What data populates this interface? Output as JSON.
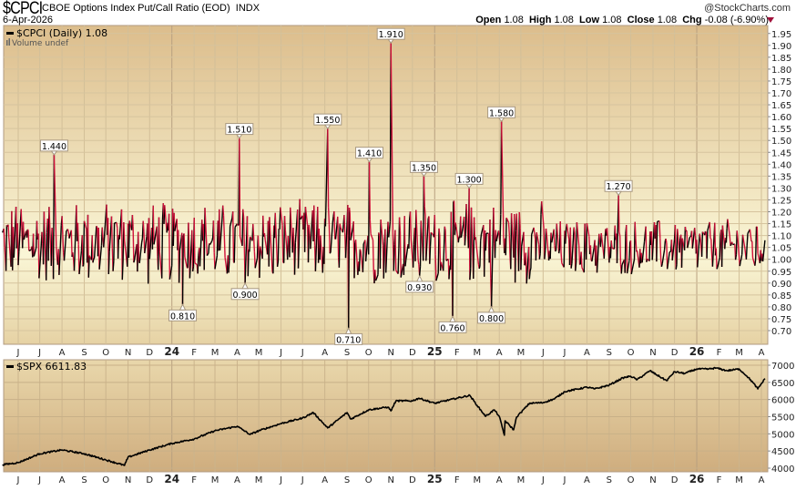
{
  "header": {
    "symbol": "$CPCI",
    "name": "CBOE Options Index Put/Call Ratio (EOD)",
    "exchange": "INDX",
    "date": "6-Apr-2026",
    "brand": "@StockCharts.com",
    "open_label": "Open",
    "open": "1.08",
    "high_label": "High",
    "high": "1.08",
    "low_label": "Low",
    "low": "1.08",
    "close_label": "Close",
    "close": "1.08",
    "chg_label": "Chg",
    "chg": "-0.08 (-6.90%)",
    "chg_direction": "down"
  },
  "colors": {
    "down": "#d0103a",
    "up": "#000000",
    "panel_top": "#dcbd8c",
    "panel_mid": "#faf6d6",
    "border": "#b09a80"
  },
  "chart_data": [
    {
      "type": "line",
      "legend": "$CPCI (Daily) 1.08",
      "volume_note": "Volume undef",
      "ylim": [
        0.65,
        2.0
      ],
      "yticks": [
        "0.70",
        "0.75",
        "0.80",
        "0.85",
        "0.90",
        "0.95",
        "1.00",
        "1.05",
        "1.10",
        "1.15",
        "1.20",
        "1.25",
        "1.30",
        "1.35",
        "1.40",
        "1.45",
        "1.50",
        "1.55",
        "1.60",
        "1.65",
        "1.70",
        "1.75",
        "1.80",
        "1.85",
        "1.90",
        "1.95"
      ],
      "grid": true,
      "last_value": 1.08,
      "annotations": [
        {
          "date": "2023-07-21",
          "value": 1.44,
          "label": "1.440",
          "pos": "above"
        },
        {
          "date": "2024-01-16",
          "value": 0.81,
          "label": "0.810",
          "pos": "below"
        },
        {
          "date": "2024-04-04",
          "value": 1.51,
          "label": "1.510",
          "pos": "above"
        },
        {
          "date": "2024-04-12",
          "value": 0.9,
          "label": "0.900",
          "pos": "below"
        },
        {
          "date": "2024-08-05",
          "value": 1.55,
          "label": "1.550",
          "pos": "above"
        },
        {
          "date": "2024-09-03",
          "value": 0.71,
          "label": "0.710",
          "pos": "below"
        },
        {
          "date": "2024-10-02",
          "value": 1.41,
          "label": "1.410",
          "pos": "above"
        },
        {
          "date": "2024-11-01",
          "value": 1.91,
          "label": "1.910",
          "pos": "above"
        },
        {
          "date": "2024-12-11",
          "value": 0.93,
          "label": "0.930",
          "pos": "below"
        },
        {
          "date": "2024-12-17",
          "value": 1.35,
          "label": "1.350",
          "pos": "above"
        },
        {
          "date": "2025-01-26",
          "value": 0.76,
          "label": "0.760",
          "pos": "below"
        },
        {
          "date": "2025-02-18",
          "value": 1.3,
          "label": "1.300",
          "pos": "above"
        },
        {
          "date": "2025-03-21",
          "value": 0.8,
          "label": "0.800",
          "pos": "below"
        },
        {
          "date": "2025-04-04",
          "value": 1.58,
          "label": "1.580",
          "pos": "above"
        },
        {
          "date": "2025-09-14",
          "value": 1.27,
          "label": "1.270",
          "pos": "above"
        }
      ]
    },
    {
      "type": "line",
      "legend": "$SPX 6611.83",
      "ylim": [
        3900,
        7150
      ],
      "yticks": [
        "4000",
        "4500",
        "5000",
        "5500",
        "6000",
        "6500",
        "7000"
      ],
      "grid": true,
      "points": [
        [
          "2023-05-10",
          4100
        ],
        [
          "2023-06-01",
          4160
        ],
        [
          "2023-07-01",
          4420
        ],
        [
          "2023-08-01",
          4530
        ],
        [
          "2023-09-01",
          4420
        ],
        [
          "2023-10-01",
          4240
        ],
        [
          "2023-10-27",
          4080
        ],
        [
          "2023-11-01",
          4320
        ],
        [
          "2023-12-01",
          4530
        ],
        [
          "2024-01-01",
          4720
        ],
        [
          "2024-02-01",
          4850
        ],
        [
          "2024-03-01",
          5090
        ],
        [
          "2024-04-01",
          5220
        ],
        [
          "2024-04-19",
          4980
        ],
        [
          "2024-05-01",
          5090
        ],
        [
          "2024-06-01",
          5300
        ],
        [
          "2024-07-01",
          5460
        ],
        [
          "2024-07-16",
          5620
        ],
        [
          "2024-08-05",
          5170
        ],
        [
          "2024-09-01",
          5620
        ],
        [
          "2024-09-06",
          5430
        ],
        [
          "2024-10-01",
          5700
        ],
        [
          "2024-10-28",
          5780
        ],
        [
          "2024-11-01",
          5670
        ],
        [
          "2024-11-08",
          5960
        ],
        [
          "2024-12-01",
          5960
        ],
        [
          "2024-12-10",
          6040
        ],
        [
          "2025-01-01",
          5890
        ],
        [
          "2025-02-01",
          6040
        ],
        [
          "2025-02-19",
          6120
        ],
        [
          "2025-03-01",
          5830
        ],
        [
          "2025-03-13",
          5510
        ],
        [
          "2025-03-25",
          5700
        ],
        [
          "2025-04-01",
          5510
        ],
        [
          "2025-04-08",
          4960
        ],
        [
          "2025-04-09",
          5380
        ],
        [
          "2025-04-21",
          5120
        ],
        [
          "2025-04-25",
          5490
        ],
        [
          "2025-05-01",
          5620
        ],
        [
          "2025-05-13",
          5890
        ],
        [
          "2025-06-01",
          5910
        ],
        [
          "2025-06-17",
          6020
        ],
        [
          "2025-07-01",
          6230
        ],
        [
          "2025-08-01",
          6360
        ],
        [
          "2025-08-12",
          6310
        ],
        [
          "2025-09-01",
          6420
        ],
        [
          "2025-09-20",
          6630
        ],
        [
          "2025-10-01",
          6680
        ],
        [
          "2025-10-10",
          6580
        ],
        [
          "2025-10-28",
          6840
        ],
        [
          "2025-11-07",
          6710
        ],
        [
          "2025-11-20",
          6550
        ],
        [
          "2025-12-01",
          6810
        ],
        [
          "2025-12-15",
          6760
        ],
        [
          "2026-01-01",
          6890
        ],
        [
          "2026-01-18",
          6890
        ],
        [
          "2026-01-28",
          6920
        ],
        [
          "2026-02-12",
          6840
        ],
        [
          "2026-03-01",
          6890
        ],
        [
          "2026-03-12",
          6680
        ],
        [
          "2026-03-20",
          6500
        ],
        [
          "2026-03-27",
          6310
        ],
        [
          "2026-04-06",
          6611.83
        ]
      ]
    }
  ],
  "x_axis": {
    "start": "2023-05-10",
    "end": "2026-04-06",
    "ticks": [
      {
        "date": "2023-06-01",
        "label": "J"
      },
      {
        "date": "2023-07-01",
        "label": "J"
      },
      {
        "date": "2023-08-01",
        "label": "A"
      },
      {
        "date": "2023-09-01",
        "label": "S"
      },
      {
        "date": "2023-10-01",
        "label": "O"
      },
      {
        "date": "2023-11-01",
        "label": "N"
      },
      {
        "date": "2023-12-01",
        "label": "D"
      },
      {
        "date": "2024-01-01",
        "label": "24",
        "year": true
      },
      {
        "date": "2024-02-01",
        "label": "F"
      },
      {
        "date": "2024-03-01",
        "label": "M"
      },
      {
        "date": "2024-04-01",
        "label": "A"
      },
      {
        "date": "2024-05-01",
        "label": "M"
      },
      {
        "date": "2024-06-01",
        "label": "J"
      },
      {
        "date": "2024-07-01",
        "label": "J"
      },
      {
        "date": "2024-08-01",
        "label": "A"
      },
      {
        "date": "2024-09-01",
        "label": "S"
      },
      {
        "date": "2024-10-01",
        "label": "O"
      },
      {
        "date": "2024-11-01",
        "label": "N"
      },
      {
        "date": "2024-12-01",
        "label": "D"
      },
      {
        "date": "2025-01-01",
        "label": "25",
        "year": true
      },
      {
        "date": "2025-02-01",
        "label": "F"
      },
      {
        "date": "2025-03-01",
        "label": "M"
      },
      {
        "date": "2025-04-01",
        "label": "A"
      },
      {
        "date": "2025-05-01",
        "label": "M"
      },
      {
        "date": "2025-06-01",
        "label": "J"
      },
      {
        "date": "2025-07-01",
        "label": "J"
      },
      {
        "date": "2025-08-01",
        "label": "A"
      },
      {
        "date": "2025-09-01",
        "label": "S"
      },
      {
        "date": "2025-10-01",
        "label": "O"
      },
      {
        "date": "2025-11-01",
        "label": "N"
      },
      {
        "date": "2025-12-01",
        "label": "D"
      },
      {
        "date": "2026-01-01",
        "label": "26",
        "year": true
      },
      {
        "date": "2026-02-01",
        "label": "F"
      },
      {
        "date": "2026-03-01",
        "label": "M"
      },
      {
        "date": "2026-04-01",
        "label": "A"
      }
    ]
  }
}
